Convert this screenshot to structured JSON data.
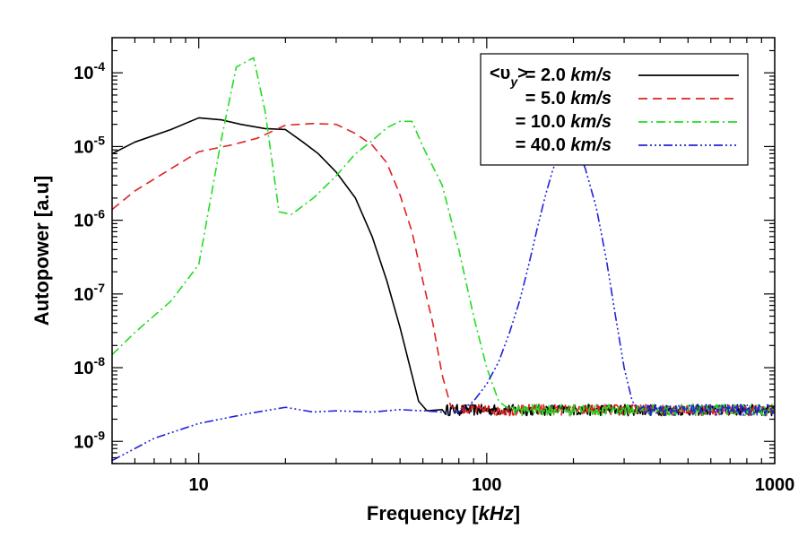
{
  "chart_data": {
    "type": "line",
    "xlabel": "Frequency [kHz]",
    "xlabel_main": "Frequency [",
    "xlabel_unit": "kHz",
    "xlabel_close": "]",
    "ylabel": "Autopower [a.u]",
    "x_scale": "log",
    "y_scale": "log",
    "xlim": [
      5,
      1000
    ],
    "ylim": [
      5e-10,
      0.0003
    ],
    "x_ticks": [
      {
        "value": 10,
        "label": "10"
      },
      {
        "value": 100,
        "label": "100"
      },
      {
        "value": 1000,
        "label": "1000"
      }
    ],
    "y_ticks": [
      {
        "exp": -9,
        "base": "10",
        "sup": "-9"
      },
      {
        "exp": -8,
        "base": "10",
        "sup": "-8"
      },
      {
        "exp": -7,
        "base": "10",
        "sup": "-7"
      },
      {
        "exp": -6,
        "base": "10",
        "sup": "-6"
      },
      {
        "exp": -5,
        "base": "10",
        "sup": "-5"
      },
      {
        "exp": -4,
        "base": "10",
        "sup": "-4"
      }
    ],
    "grid": false,
    "legend_position": "top-right",
    "legend_symbol_open": "<υ",
    "legend_symbol_sub": "y",
    "legend_symbol_close": ">",
    "noise_floor": 2.7e-09,
    "series": [
      {
        "label": "= 2.0",
        "unit": "km/s",
        "color": "#000000",
        "dash": "",
        "points": [
          [
            5,
            8e-06
          ],
          [
            6,
            1.15e-05
          ],
          [
            8,
            1.7e-05
          ],
          [
            10,
            2.45e-05
          ],
          [
            12,
            2.3e-05
          ],
          [
            14,
            2e-05
          ],
          [
            17,
            1.75e-05
          ],
          [
            20,
            1.7e-05
          ],
          [
            23,
            1.15e-05
          ],
          [
            26,
            8e-06
          ],
          [
            30,
            4.5e-06
          ],
          [
            35,
            2e-06
          ],
          [
            40,
            6e-07
          ],
          [
            45,
            1.5e-07
          ],
          [
            50,
            3.5e-08
          ],
          [
            55,
            8e-09
          ],
          [
            58,
            3.5e-09
          ],
          [
            62,
            2.6e-09
          ],
          [
            70,
            2.7e-09
          ]
        ]
      },
      {
        "label": "= 5.0",
        "unit": "km/s",
        "color": "#dd2222",
        "dash": "10,6",
        "points": [
          [
            5,
            1.4e-06
          ],
          [
            6,
            2.5e-06
          ],
          [
            8,
            5e-06
          ],
          [
            10,
            8.5e-06
          ],
          [
            13,
            1.05e-05
          ],
          [
            16,
            1.3e-05
          ],
          [
            20,
            1.95e-05
          ],
          [
            25,
            2.05e-05
          ],
          [
            30,
            2e-05
          ],
          [
            35,
            1.5e-05
          ],
          [
            40,
            1.05e-05
          ],
          [
            45,
            6e-06
          ],
          [
            50,
            2.2e-06
          ],
          [
            55,
            7e-07
          ],
          [
            60,
            1.5e-07
          ],
          [
            65,
            4e-08
          ],
          [
            70,
            8e-09
          ],
          [
            75,
            3e-09
          ],
          [
            80,
            2.7e-09
          ]
        ]
      },
      {
        "label": "= 10.0",
        "unit": "km/s",
        "color": "#22dd22",
        "dash": "10,4,2,4",
        "points": [
          [
            5,
            1.5e-08
          ],
          [
            6,
            3e-08
          ],
          [
            8,
            8e-08
          ],
          [
            10,
            2.5e-07
          ],
          [
            12,
            1.3e-05
          ],
          [
            13.5,
            0.00012
          ],
          [
            15.5,
            0.00016
          ],
          [
            17,
            3e-05
          ],
          [
            19,
            1.3e-06
          ],
          [
            21,
            1.2e-06
          ],
          [
            25,
            2e-06
          ],
          [
            30,
            4e-06
          ],
          [
            35,
            8e-06
          ],
          [
            40,
            1.2e-05
          ],
          [
            45,
            1.8e-05
          ],
          [
            50,
            2.2e-05
          ],
          [
            55,
            2.2e-05
          ],
          [
            60,
            1e-05
          ],
          [
            70,
            3e-06
          ],
          [
            80,
            4e-07
          ],
          [
            90,
            5e-08
          ],
          [
            100,
            1e-08
          ],
          [
            110,
            3.5e-09
          ],
          [
            120,
            2.7e-09
          ]
        ]
      },
      {
        "label": "= 40.0",
        "unit": "km/s",
        "color": "#2222dd",
        "dash": "10,3,2,3,2,3,2,3",
        "points": [
          [
            5,
            5.5e-10
          ],
          [
            7,
            1.1e-09
          ],
          [
            10,
            1.75e-09
          ],
          [
            15,
            2.4e-09
          ],
          [
            20,
            2.9e-09
          ],
          [
            25,
            2.5e-09
          ],
          [
            30,
            2.6e-09
          ],
          [
            40,
            2.5e-09
          ],
          [
            50,
            2.7e-09
          ],
          [
            60,
            2.6e-09
          ],
          [
            70,
            2.5e-09
          ],
          [
            80,
            2.5e-09
          ],
          [
            90,
            3.5e-09
          ],
          [
            100,
            6e-09
          ],
          [
            110,
            1.2e-08
          ],
          [
            120,
            3e-08
          ],
          [
            130,
            8e-08
          ],
          [
            140,
            2.5e-07
          ],
          [
            150,
            8e-07
          ],
          [
            160,
            2.2e-06
          ],
          [
            170,
            5e-06
          ],
          [
            180,
            8e-06
          ],
          [
            190,
            9.5e-06
          ],
          [
            200,
            1.05e-05
          ],
          [
            210,
            8e-06
          ],
          [
            220,
            5e-06
          ],
          [
            240,
            1.5e-06
          ],
          [
            260,
            3e-07
          ],
          [
            280,
            5e-08
          ],
          [
            300,
            1e-08
          ],
          [
            320,
            3.5e-09
          ],
          [
            340,
            2.7e-09
          ]
        ]
      }
    ]
  }
}
